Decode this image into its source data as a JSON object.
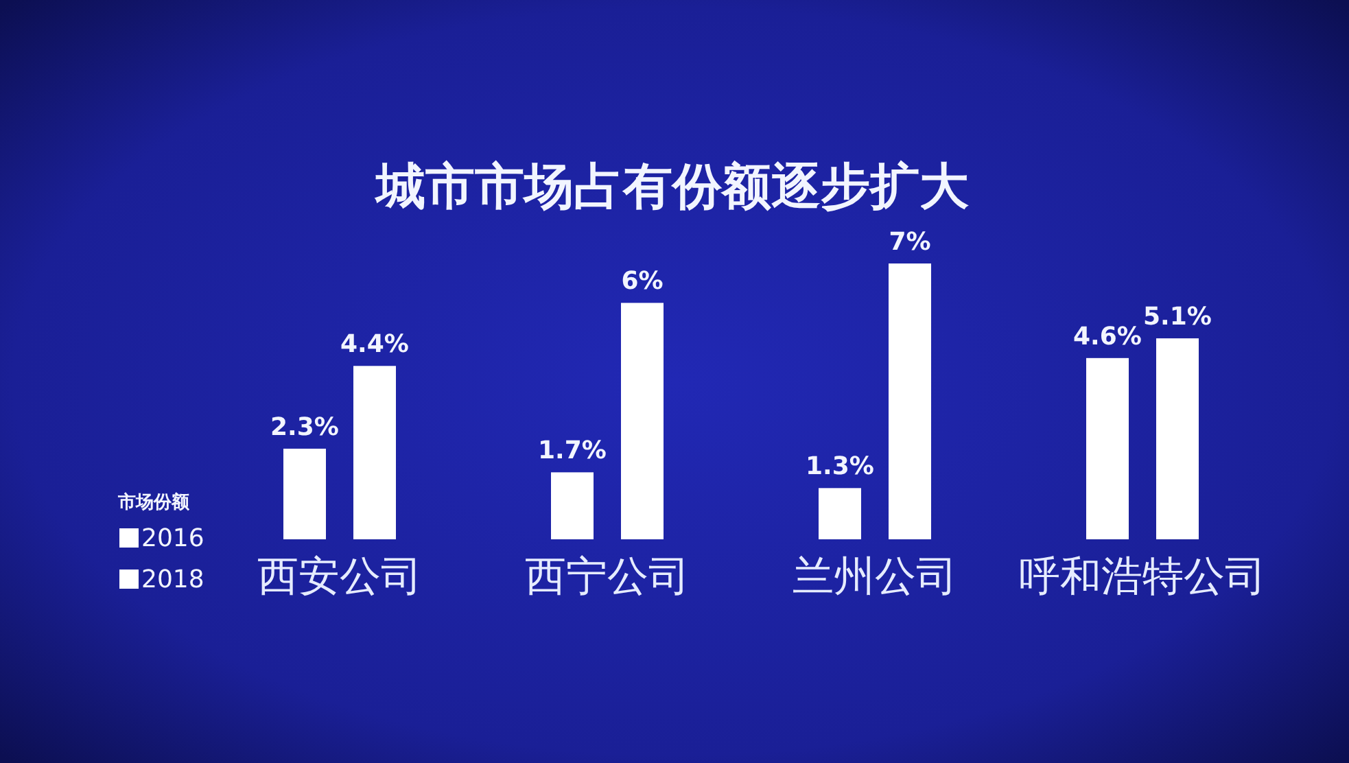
{
  "chart_data": {
    "type": "bar",
    "title": "城市市场占有份额逐步扩大",
    "categories": [
      "西安公司",
      "西宁公司",
      "兰州公司",
      "呼和浩特公司"
    ],
    "legend_title": "市场份额",
    "legend": "bottom left",
    "series": [
      {
        "name": "2016",
        "color": "#ffffff",
        "values": [
          2.3,
          1.7,
          1.3,
          4.6
        ],
        "value_labels": [
          "2.3%",
          "1.7%",
          "1.3%",
          "4.6%"
        ]
      },
      {
        "name": "2018",
        "color": "#ffffff",
        "values": [
          4.4,
          6,
          7,
          5.1
        ],
        "value_labels": [
          "4.4%",
          "6%",
          "7%",
          "5.1%"
        ]
      }
    ]
  }
}
